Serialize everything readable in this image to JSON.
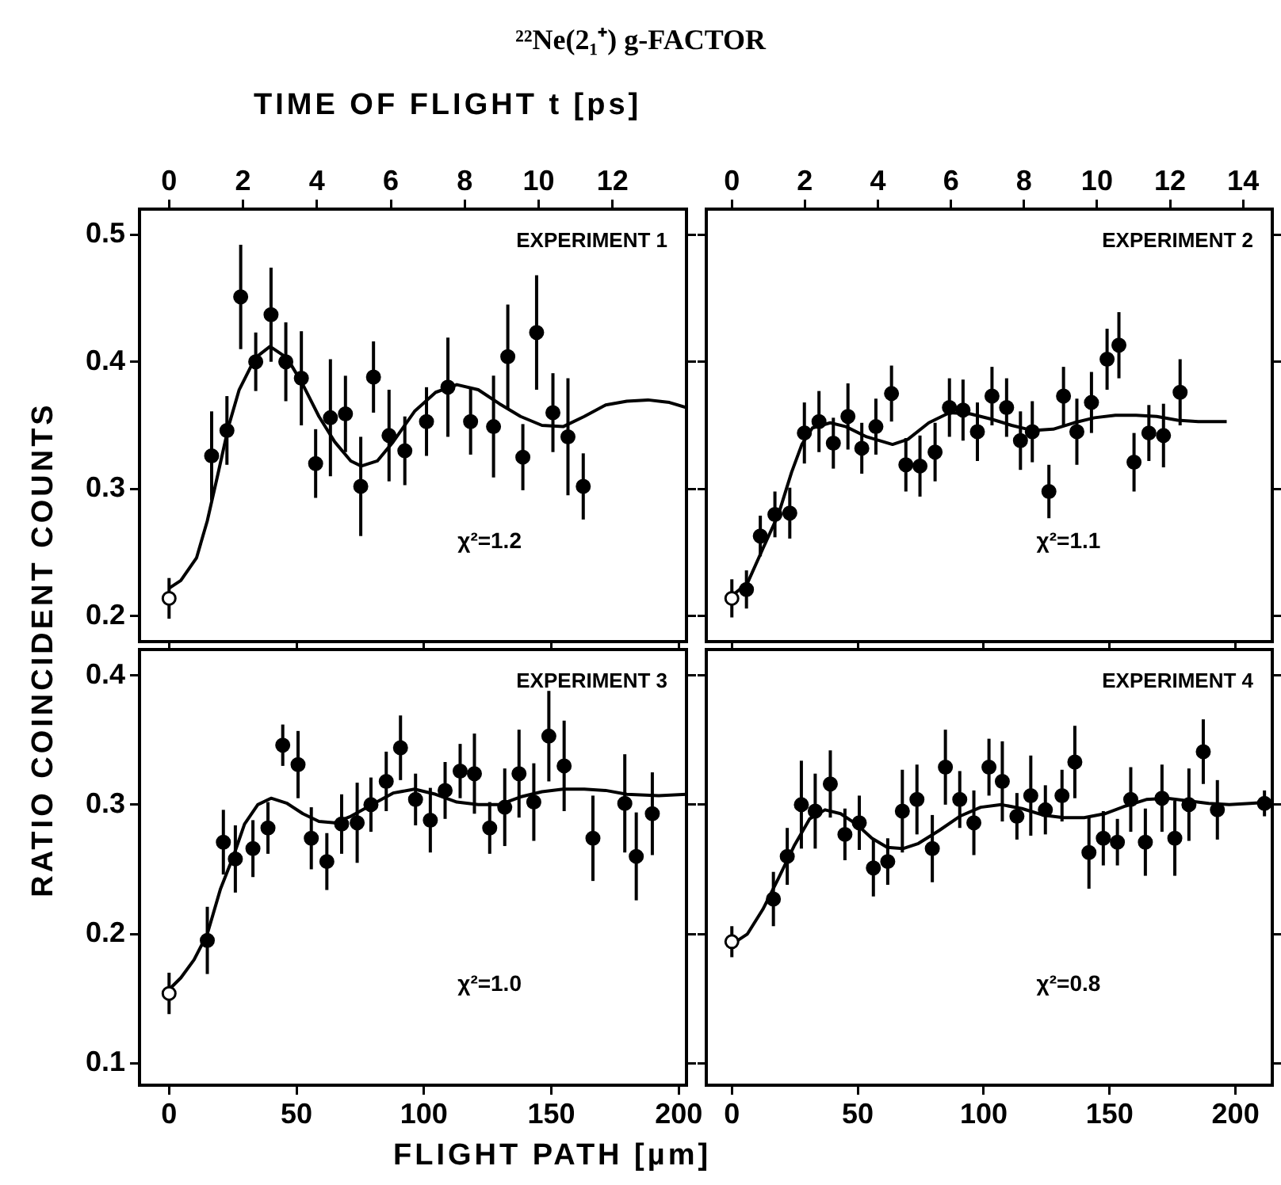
{
  "chart_data": [
    {
      "type": "scatter",
      "title": "²²Ne(2₁⁺) g-FACTOR",
      "x2label": "TIME OF FLIGHT t [ps]",
      "ylabel": "RATIO COINCIDENT COUNTS",
      "annotations": [
        "EXPERIMENT 1",
        "χ²=1.2"
      ],
      "xlim": [
        -11.6,
        203
      ],
      "xticks": [
        0,
        50,
        100,
        150,
        200
      ],
      "x2lim": [
        -0.8,
        14.0
      ],
      "x2ticks": [
        0,
        2,
        4,
        6,
        8,
        10,
        12
      ],
      "ylim": [
        0.18,
        0.52
      ],
      "yticks": [
        0.2,
        0.3,
        0.4,
        0.5
      ],
      "tick_labels": "y",
      "grid": false,
      "legend": false,
      "series": [
        {
          "color": "#000000",
          "marker": "circle",
          "colors": [
            "#ffffff",
            "#000000",
            "#000000",
            "#000000",
            "#000000",
            "#000000",
            "#000000",
            "#000000",
            "#000000",
            "#000000",
            "#000000",
            "#000000",
            "#000000",
            "#000000",
            "#000000",
            "#000000",
            "#000000",
            "#000000",
            "#000000",
            "#000000",
            "#000000",
            "#000000",
            "#000000",
            "#000000",
            "#000000"
          ],
          "x": [
            0,
            16.7,
            22.7,
            28.1,
            34.0,
            40.0,
            45.8,
            51.9,
            57.5,
            63.3,
            69.2,
            75.2,
            80.2,
            86.3,
            92.5,
            101.0,
            109.4,
            118.3,
            127.3,
            132.9,
            138.8,
            144.2,
            150.6,
            156.5,
            162.5
          ],
          "values": [
            0.214,
            0.326,
            0.346,
            0.451,
            0.4,
            0.437,
            0.4,
            0.387,
            0.32,
            0.356,
            0.359,
            0.302,
            0.388,
            0.342,
            0.33,
            0.353,
            0.38,
            0.353,
            0.349,
            0.404,
            0.325,
            0.423,
            0.36,
            0.341,
            0.302
          ],
          "errors": [
            0.016,
            0.035,
            0.027,
            0.041,
            0.023,
            0.037,
            0.031,
            0.037,
            0.027,
            0.046,
            0.03,
            0.039,
            0.028,
            0.036,
            0.027,
            0.027,
            0.039,
            0.026,
            0.04,
            0.041,
            0.026,
            0.045,
            0.031,
            0.046,
            0.026
          ]
        },
        {
          "type": "line",
          "color": "#000000",
          "marker": "none",
          "line_style": "solid",
          "x": [
            0,
            4.6,
            10.8,
            15.0,
            19.2,
            23.3,
            27.5,
            33.8,
            39.6,
            46.3,
            52.5,
            58.8,
            65.0,
            71.3,
            75.4,
            81.7,
            87.9,
            96.3,
            104.6,
            112.9,
            121.3,
            129.6,
            137.9,
            146.3,
            154.6,
            162.9,
            171.3,
            179.6,
            187.9,
            196.3,
            203.0
          ],
          "values": [
            0.222,
            0.228,
            0.246,
            0.275,
            0.312,
            0.349,
            0.378,
            0.403,
            0.412,
            0.403,
            0.382,
            0.357,
            0.337,
            0.322,
            0.318,
            0.322,
            0.337,
            0.361,
            0.376,
            0.382,
            0.378,
            0.367,
            0.357,
            0.35,
            0.349,
            0.357,
            0.366,
            0.369,
            0.37,
            0.368,
            0.364
          ]
        }
      ]
    },
    {
      "type": "scatter",
      "annotations": [
        "EXPERIMENT 2",
        "χ²=1.1"
      ],
      "xlim": [
        -10.15,
        214.6
      ],
      "xticks": [
        0,
        50,
        100,
        150,
        200
      ],
      "x2lim": [
        -0.7,
        14.8
      ],
      "x2ticks": [
        0,
        2,
        4,
        6,
        8,
        10,
        12,
        14
      ],
      "ylim": [
        0.18,
        0.52
      ],
      "yticks": [
        0.2,
        0.3,
        0.4,
        0.5
      ],
      "tick_labels": false,
      "grid": false,
      "legend": false,
      "series": [
        {
          "color": "#000000",
          "marker": "circle",
          "colors": [
            "#ffffff",
            "#000000",
            "#000000",
            "#000000",
            "#000000",
            "#000000",
            "#000000",
            "#000000",
            "#000000",
            "#000000",
            "#000000",
            "#000000",
            "#000000",
            "#000000",
            "#000000",
            "#000000",
            "#000000",
            "#000000",
            "#000000",
            "#000000",
            "#000000",
            "#000000",
            "#000000",
            "#000000",
            "#000000",
            "#000000",
            "#000000",
            "#000000",
            "#000000",
            "#000000",
            "#000000",
            "#000000"
          ],
          "x": [
            0,
            5.8,
            11.3,
            17.1,
            23.0,
            28.8,
            34.6,
            40.3,
            46.1,
            51.6,
            57.2,
            63.4,
            69.1,
            74.7,
            80.7,
            86.4,
            91.8,
            97.5,
            103.3,
            109.1,
            114.6,
            119.3,
            125.9,
            131.7,
            137.0,
            142.8,
            149.0,
            153.7,
            159.7,
            165.6,
            171.4,
            178.0
          ],
          "values": [
            0.214,
            0.221,
            0.263,
            0.28,
            0.281,
            0.344,
            0.353,
            0.336,
            0.357,
            0.332,
            0.349,
            0.375,
            0.319,
            0.318,
            0.329,
            0.364,
            0.362,
            0.345,
            0.373,
            0.364,
            0.338,
            0.345,
            0.298,
            0.373,
            0.345,
            0.368,
            0.402,
            0.413,
            0.321,
            0.344,
            0.342,
            0.376
          ],
          "errors": [
            0.015,
            0.015,
            0.016,
            0.018,
            0.02,
            0.024,
            0.024,
            0.02,
            0.026,
            0.02,
            0.022,
            0.022,
            0.021,
            0.024,
            0.023,
            0.023,
            0.024,
            0.023,
            0.023,
            0.023,
            0.023,
            0.024,
            0.021,
            0.023,
            0.026,
            0.024,
            0.024,
            0.026,
            0.023,
            0.022,
            0.025,
            0.026
          ]
        },
        {
          "type": "line",
          "color": "#000000",
          "marker": "none",
          "line_style": "solid",
          "x": [
            0,
            6.2,
            12.3,
            18.5,
            23.7,
            27.8,
            32.0,
            39.1,
            45.3,
            53.5,
            63.8,
            69.9,
            78.2,
            86.4,
            94.7,
            102.9,
            111.1,
            119.3,
            127.6,
            135.8,
            144.0,
            152.3,
            160.5,
            168.7,
            177.0,
            185.2,
            196.5
          ],
          "values": [
            0.216,
            0.226,
            0.253,
            0.28,
            0.313,
            0.335,
            0.348,
            0.352,
            0.349,
            0.341,
            0.335,
            0.339,
            0.352,
            0.36,
            0.359,
            0.355,
            0.35,
            0.346,
            0.347,
            0.352,
            0.356,
            0.358,
            0.358,
            0.357,
            0.354,
            0.353,
            0.353
          ]
        }
      ]
    },
    {
      "type": "scatter",
      "xlabel": "FLIGHT PATH [µm]",
      "annotations": [
        "EXPERIMENT 3",
        "χ²=1.0"
      ],
      "xlim": [
        -11.6,
        203
      ],
      "xticks": [
        0,
        50,
        100,
        150,
        200
      ],
      "ylim": [
        0.083,
        0.42
      ],
      "yticks": [
        0.1,
        0.2,
        0.3,
        0.4
      ],
      "grid": false,
      "legend": false,
      "series": [
        {
          "color": "#000000",
          "marker": "circle",
          "colors": [
            "#ffffff",
            "#000000",
            "#000000",
            "#000000",
            "#000000",
            "#000000",
            "#000000",
            "#000000",
            "#000000",
            "#000000",
            "#000000",
            "#000000",
            "#000000",
            "#000000",
            "#000000",
            "#000000",
            "#000000",
            "#000000",
            "#000000",
            "#000000",
            "#000000",
            "#000000",
            "#000000",
            "#000000",
            "#000000",
            "#000000",
            "#000000",
            "#000000",
            "#000000",
            "#000000"
          ],
          "x": [
            0,
            15.0,
            21.3,
            26.0,
            32.9,
            38.8,
            44.6,
            50.6,
            55.8,
            61.9,
            67.7,
            73.8,
            79.2,
            85.2,
            90.8,
            96.7,
            102.5,
            108.3,
            114.2,
            119.8,
            125.8,
            131.7,
            137.3,
            143.1,
            149.0,
            155.0,
            166.3,
            178.8,
            183.3,
            189.6
          ],
          "values": [
            0.154,
            0.195,
            0.271,
            0.258,
            0.266,
            0.282,
            0.346,
            0.331,
            0.274,
            0.256,
            0.285,
            0.286,
            0.3,
            0.318,
            0.344,
            0.304,
            0.288,
            0.311,
            0.326,
            0.324,
            0.282,
            0.298,
            0.324,
            0.302,
            0.353,
            0.33,
            0.274,
            0.301,
            0.26,
            0.293
          ],
          "errors": [
            0.016,
            0.026,
            0.025,
            0.026,
            0.022,
            0.02,
            0.016,
            0.026,
            0.024,
            0.022,
            0.023,
            0.031,
            0.021,
            0.023,
            0.025,
            0.02,
            0.025,
            0.022,
            0.021,
            0.031,
            0.02,
            0.03,
            0.034,
            0.03,
            0.035,
            0.035,
            0.033,
            0.038,
            0.034,
            0.032
          ]
        },
        {
          "type": "line",
          "color": "#000000",
          "marker": "none",
          "line_style": "solid",
          "x": [
            0,
            4.6,
            9.8,
            15.0,
            20.2,
            25.4,
            29.6,
            34.8,
            40.0,
            46.3,
            52.5,
            58.8,
            65.0,
            71.3,
            79.6,
            87.9,
            96.3,
            104.6,
            112.9,
            121.3,
            129.6,
            137.9,
            146.3,
            154.6,
            162.9,
            171.3,
            179.6,
            192.1,
            203.0
          ],
          "values": [
            0.157,
            0.166,
            0.18,
            0.2,
            0.235,
            0.261,
            0.285,
            0.3,
            0.305,
            0.301,
            0.293,
            0.287,
            0.286,
            0.291,
            0.3,
            0.309,
            0.312,
            0.308,
            0.302,
            0.3,
            0.3,
            0.306,
            0.31,
            0.312,
            0.312,
            0.311,
            0.308,
            0.307,
            0.308
          ]
        }
      ]
    },
    {
      "type": "scatter",
      "annotations": [
        "EXPERIMENT 4",
        "χ²=0.8"
      ],
      "xlim": [
        -10.15,
        214.6
      ],
      "xticks": [
        0,
        50,
        100,
        150,
        200
      ],
      "ylim": [
        0.083,
        0.42
      ],
      "yticks": [
        0.1,
        0.2,
        0.3,
        0.4
      ],
      "tick_labels": "x",
      "grid": false,
      "legend": false,
      "series": [
        {
          "color": "#000000",
          "marker": "circle",
          "colors": [
            "#ffffff",
            "#000000",
            "#000000",
            "#000000",
            "#000000",
            "#000000",
            "#000000",
            "#000000",
            "#000000",
            "#000000",
            "#000000",
            "#000000",
            "#000000",
            "#000000",
            "#000000",
            "#000000",
            "#000000",
            "#000000",
            "#000000",
            "#000000",
            "#000000",
            "#000000",
            "#000000",
            "#000000",
            "#000000",
            "#000000",
            "#000000",
            "#000000",
            "#000000",
            "#000000",
            "#000000",
            "#000000",
            "#000000",
            "#000000"
          ],
          "x": [
            0,
            16.5,
            22.0,
            27.6,
            33.1,
            39.1,
            44.9,
            50.6,
            56.2,
            61.9,
            67.7,
            73.5,
            79.6,
            84.8,
            90.5,
            96.1,
            102.1,
            107.4,
            113.2,
            118.7,
            124.5,
            131.1,
            136.2,
            141.8,
            147.5,
            153.1,
            158.4,
            164.2,
            170.8,
            175.9,
            181.5,
            187.2,
            192.8,
            211.5
          ],
          "values": [
            0.194,
            0.227,
            0.26,
            0.3,
            0.295,
            0.316,
            0.277,
            0.286,
            0.251,
            0.256,
            0.295,
            0.304,
            0.266,
            0.329,
            0.304,
            0.286,
            0.329,
            0.318,
            0.291,
            0.307,
            0.296,
            0.307,
            0.333,
            0.263,
            0.274,
            0.271,
            0.304,
            0.271,
            0.305,
            0.274,
            0.3,
            0.341,
            0.296,
            0.301
          ],
          "errors": [
            0.012,
            0.021,
            0.022,
            0.034,
            0.029,
            0.026,
            0.02,
            0.021,
            0.022,
            0.018,
            0.032,
            0.027,
            0.026,
            0.029,
            0.022,
            0.025,
            0.022,
            0.031,
            0.018,
            0.031,
            0.019,
            0.02,
            0.028,
            0.028,
            0.021,
            0.018,
            0.025,
            0.026,
            0.026,
            0.029,
            0.028,
            0.025,
            0.023,
            0.01
          ]
        },
        {
          "type": "line",
          "color": "#000000",
          "marker": "none",
          "line_style": "solid",
          "x": [
            0,
            6.2,
            12.3,
            18.5,
            24.7,
            30.9,
            37.0,
            43.2,
            49.4,
            55.6,
            61.7,
            67.9,
            74.1,
            82.3,
            90.5,
            98.8,
            107.0,
            115.2,
            123.5,
            131.7,
            139.9,
            148.1,
            156.4,
            164.6,
            172.8,
            181.1,
            189.3,
            197.5,
            205.8,
            214.0
          ],
          "values": [
            0.192,
            0.2,
            0.219,
            0.243,
            0.268,
            0.289,
            0.296,
            0.293,
            0.285,
            0.274,
            0.267,
            0.266,
            0.27,
            0.28,
            0.291,
            0.298,
            0.3,
            0.297,
            0.292,
            0.29,
            0.29,
            0.293,
            0.299,
            0.304,
            0.305,
            0.303,
            0.301,
            0.3,
            0.301,
            0.302
          ]
        }
      ]
    }
  ]
}
